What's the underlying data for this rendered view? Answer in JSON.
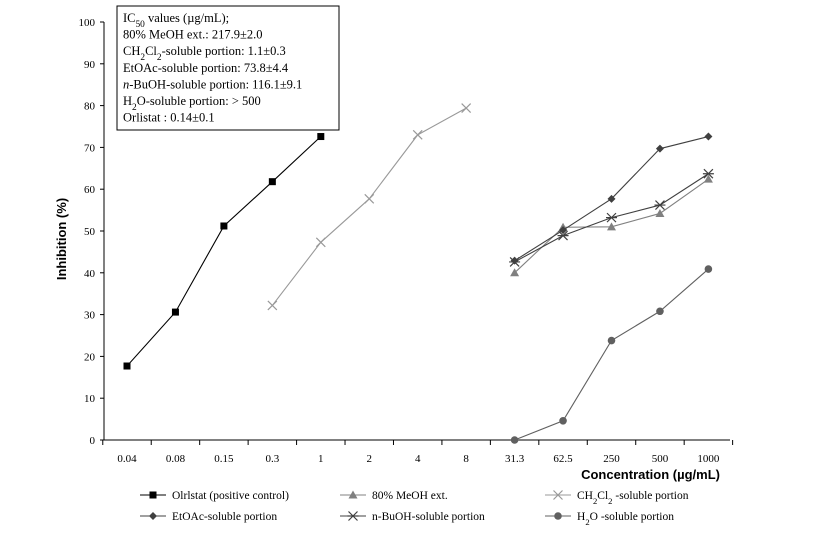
{
  "chart_data": {
    "type": "line",
    "title": "",
    "xlabel": "Concentration (µg/mL)",
    "ylabel": "Inhibition (%)",
    "ylim": [
      0,
      100
    ],
    "yticks": [
      0,
      10,
      20,
      30,
      40,
      50,
      60,
      70,
      80,
      90,
      100
    ],
    "categories": [
      "0.04",
      "0.08",
      "0.15",
      "0.3",
      "1",
      "2",
      "4",
      "8",
      "31.3",
      "62.5",
      "250",
      "500",
      "1000"
    ],
    "grid": false,
    "legend_position": "bottom",
    "series": [
      {
        "name": "Olrlstat (positive control)",
        "marker": "square",
        "color": "#000000",
        "points": [
          [
            "0.04",
            17.7
          ],
          [
            "0.08",
            30.6
          ],
          [
            "0.15",
            51.2
          ],
          [
            "0.3",
            61.8
          ],
          [
            "1",
            72.6
          ]
        ]
      },
      {
        "name": "80% MeOH ext.",
        "marker": "triangle",
        "color": "#808080",
        "points": [
          [
            "31.3",
            40.0
          ],
          [
            "62.5",
            50.9
          ],
          [
            "250",
            51.0
          ],
          [
            "500",
            54.2
          ],
          [
            "1000",
            62.4
          ]
        ]
      },
      {
        "name": "CH2Cl2 -soluble portion",
        "marker": "x",
        "color": "#999999",
        "points": [
          [
            "0.3",
            32.2
          ],
          [
            "1",
            47.3
          ],
          [
            "2",
            57.7
          ],
          [
            "4",
            73.0
          ],
          [
            "8",
            79.4
          ]
        ]
      },
      {
        "name": "EtOAc-soluble portion",
        "marker": "diamond",
        "color": "#404040",
        "points": [
          [
            "31.3",
            42.9
          ],
          [
            "62.5",
            50.2
          ],
          [
            "250",
            57.7
          ],
          [
            "500",
            69.7
          ],
          [
            "1000",
            72.6
          ]
        ]
      },
      {
        "name": "n-BuOH-soluble portion",
        "marker": "star",
        "color": "#404040",
        "points": [
          [
            "31.3",
            42.6
          ],
          [
            "62.5",
            48.9
          ],
          [
            "250",
            53.2
          ],
          [
            "500",
            56.2
          ],
          [
            "1000",
            63.7
          ]
        ]
      },
      {
        "name": "H2O -soluble portion",
        "marker": "circle",
        "color": "#606060",
        "points": [
          [
            "31.3",
            0.0
          ],
          [
            "62.5",
            4.6
          ],
          [
            "250",
            23.8
          ],
          [
            "500",
            30.8
          ],
          [
            "1000",
            40.9
          ]
        ]
      }
    ],
    "annotation": {
      "lines": [
        "IC50 values (µg/mL);",
        "80% MeOH ext.: 217.9±2.0",
        "CH2Cl2-soluble portion: 1.1±0.3",
        "EtOAc-soluble portion: 73.8±4.4",
        "n-BuOH-soluble portion: 116.1±9.1",
        "H2O-soluble portion: > 500",
        "Orlistat : 0.14±0.1"
      ]
    }
  }
}
